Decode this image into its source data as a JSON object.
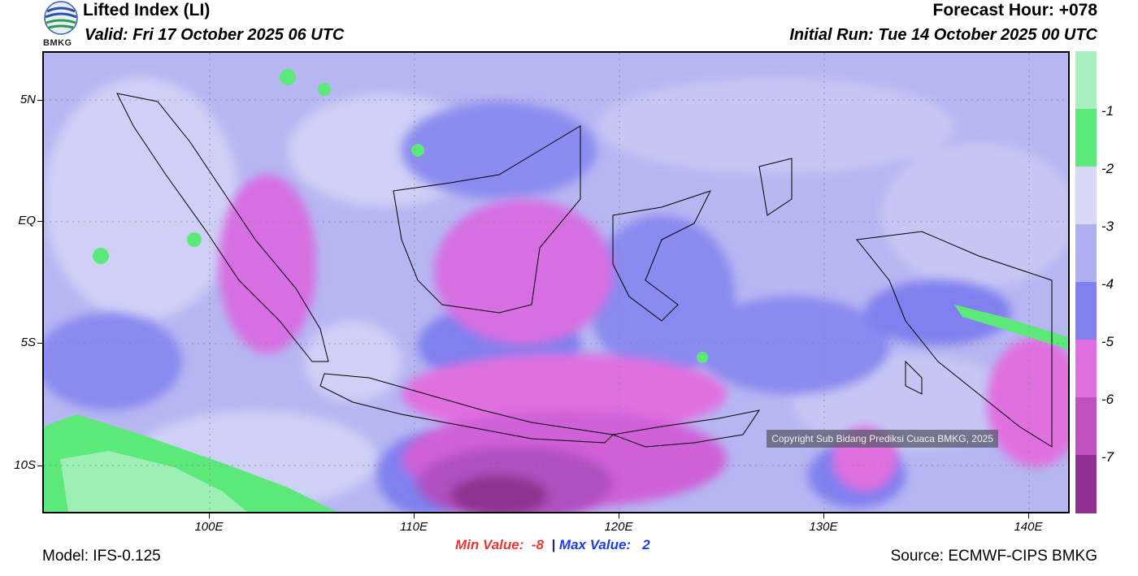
{
  "header": {
    "title": "Lifted Index (LI)",
    "valid": "Valid: Fri 17 October 2025 06 UTC",
    "forecast_hour": "Forecast Hour: +078",
    "initial_run": "Initial Run: Tue 14 October 2025 00 UTC"
  },
  "logo": {
    "text": "BMKG"
  },
  "map": {
    "lat_labels": [
      "5N",
      "EQ",
      "5S",
      "10S"
    ],
    "lon_labels": [
      "100E",
      "110E",
      "120E",
      "130E",
      "140E"
    ],
    "copyright": "Copyright Sub Bidang Prediksi Cuaca BMKG, 2025"
  },
  "colorbar": {
    "labels": [
      "-1",
      "-2",
      "-3",
      "-4",
      "-5",
      "-6",
      "-7"
    ],
    "colors": [
      "#a8f0c0",
      "#5de87a",
      "#d8d8f4",
      "#b0b0f0",
      "#8080f0",
      "#e070e0",
      "#c050c0",
      "#903090"
    ]
  },
  "stats": {
    "min_label": "Min Value:  -8",
    "separator": "|",
    "max_label": "Max Value:   2"
  },
  "footer": {
    "model": "Model: IFS-0.125",
    "source": "Source: ECMWF-CIPS BMKG"
  }
}
